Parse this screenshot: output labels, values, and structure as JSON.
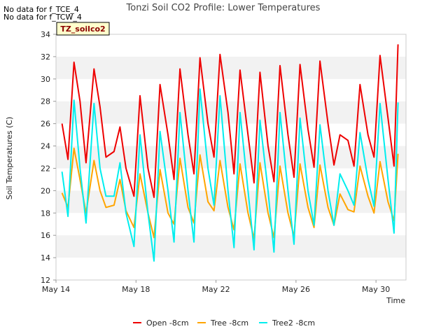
{
  "notes": [
    "No data for f_TCE_4",
    "No data for f_TCW_4"
  ],
  "badge": "TZ_soilco2",
  "chart_data": {
    "type": "line",
    "title": "Tonzi Soil CO2 Profile: Lower Temperatures",
    "xlabel": "Time",
    "ylabel": "Soil Temperatures (C)",
    "xlim": [
      14,
      31.5
    ],
    "ylim": [
      12,
      34
    ],
    "xticks": [
      14,
      18,
      22,
      26,
      30
    ],
    "xtick_labels": [
      "May 14",
      "May 18",
      "May 22",
      "May 26",
      "May 30"
    ],
    "yticks": [
      12,
      14,
      16,
      18,
      20,
      22,
      24,
      26,
      28,
      30,
      32,
      34
    ],
    "grid": "horizontal bands",
    "legend_position": "bottom",
    "colors": {
      "Open -8cm": "#ee0000",
      "Tree -8cm": "#ffa500",
      "Tree2 -8cm": "#00eeee"
    },
    "series": [
      {
        "name": "Open -8cm",
        "x": [
          14.3,
          14.6,
          14.9,
          15.2,
          15.5,
          15.9,
          16.2,
          16.5,
          16.9,
          17.2,
          17.5,
          17.9,
          18.2,
          18.6,
          18.9,
          19.2,
          19.6,
          19.9,
          20.2,
          20.6,
          20.9,
          21.2,
          21.6,
          21.9,
          22.2,
          22.6,
          22.9,
          23.2,
          23.6,
          23.9,
          24.2,
          24.6,
          24.9,
          25.2,
          25.6,
          25.9,
          26.2,
          26.6,
          26.9,
          27.2,
          27.6,
          27.9,
          28.2,
          28.6,
          28.9,
          29.2,
          29.6,
          29.9,
          30.2,
          30.6,
          30.9,
          31.1
        ],
        "y": [
          26,
          22.8,
          31.5,
          28,
          22.5,
          30.9,
          27.5,
          23,
          23.5,
          25.7,
          22,
          19.5,
          28.5,
          22,
          19.4,
          29.5,
          25,
          21,
          30.9,
          25,
          21.5,
          31.9,
          26,
          23,
          32.2,
          27,
          21.5,
          30.8,
          25,
          20.7,
          30.6,
          24,
          20.8,
          31.2,
          25,
          21.2,
          31.3,
          25.5,
          22.1,
          31.6,
          26,
          22.3,
          25,
          24.5,
          22.2,
          29.5,
          25,
          23,
          32.1,
          26.5,
          22.2,
          33.1
        ]
      },
      {
        "name": "Tree -8cm",
        "x": [
          14.3,
          14.6,
          14.9,
          15.2,
          15.5,
          15.9,
          16.2,
          16.5,
          16.9,
          17.2,
          17.5,
          17.9,
          18.2,
          18.6,
          18.9,
          19.2,
          19.6,
          19.9,
          20.2,
          20.6,
          20.9,
          21.2,
          21.6,
          21.9,
          22.2,
          22.6,
          22.9,
          23.2,
          23.6,
          23.9,
          24.2,
          24.6,
          24.9,
          25.2,
          25.6,
          25.9,
          26.2,
          26.6,
          26.9,
          27.2,
          27.6,
          27.9,
          28.2,
          28.6,
          28.9,
          29.2,
          29.6,
          29.9,
          30.2,
          30.6,
          30.9,
          31.1
        ],
        "y": [
          19.8,
          18.5,
          23.8,
          21,
          18,
          22.7,
          20,
          18.5,
          18.7,
          21,
          18.2,
          16.7,
          21.5,
          18,
          15.8,
          21.9,
          18,
          17,
          22.9,
          18.5,
          17.1,
          23.2,
          19,
          18.2,
          22.7,
          18.5,
          16.5,
          22.4,
          18,
          15.7,
          22.5,
          18,
          15.8,
          22.2,
          18,
          15.9,
          22.4,
          18.5,
          16.7,
          22.3,
          18.5,
          16.9,
          19.7,
          18.3,
          18.1,
          22.2,
          19.5,
          18,
          22.6,
          19,
          17.3,
          23.3
        ]
      },
      {
        "name": "Tree2 -8cm",
        "x": [
          14.3,
          14.6,
          14.9,
          15.2,
          15.5,
          15.9,
          16.2,
          16.5,
          16.9,
          17.2,
          17.5,
          17.9,
          18.2,
          18.6,
          18.9,
          19.2,
          19.6,
          19.9,
          20.2,
          20.6,
          20.9,
          21.2,
          21.6,
          21.9,
          22.2,
          22.6,
          22.9,
          23.2,
          23.6,
          23.9,
          24.2,
          24.6,
          24.9,
          25.2,
          25.6,
          25.9,
          26.2,
          26.6,
          26.9,
          27.2,
          27.6,
          27.9,
          28.2,
          28.6,
          28.9,
          29.2,
          29.6,
          29.9,
          30.2,
          30.6,
          30.9,
          31.1
        ],
        "y": [
          21.7,
          17.7,
          28.1,
          22,
          17.1,
          27.8,
          22,
          19.5,
          19.5,
          22.5,
          18,
          15,
          25,
          18,
          13.7,
          25.3,
          20,
          15.4,
          27,
          20,
          15.4,
          29.1,
          22,
          18.7,
          28.5,
          20,
          14.9,
          27,
          20,
          14.7,
          26.3,
          20,
          14.5,
          27,
          20,
          15.2,
          26.5,
          20,
          16.9,
          25.9,
          20,
          16.9,
          21.5,
          20,
          18.7,
          25.2,
          21,
          18.6,
          27.8,
          21,
          16.2,
          27.9
        ]
      }
    ]
  }
}
